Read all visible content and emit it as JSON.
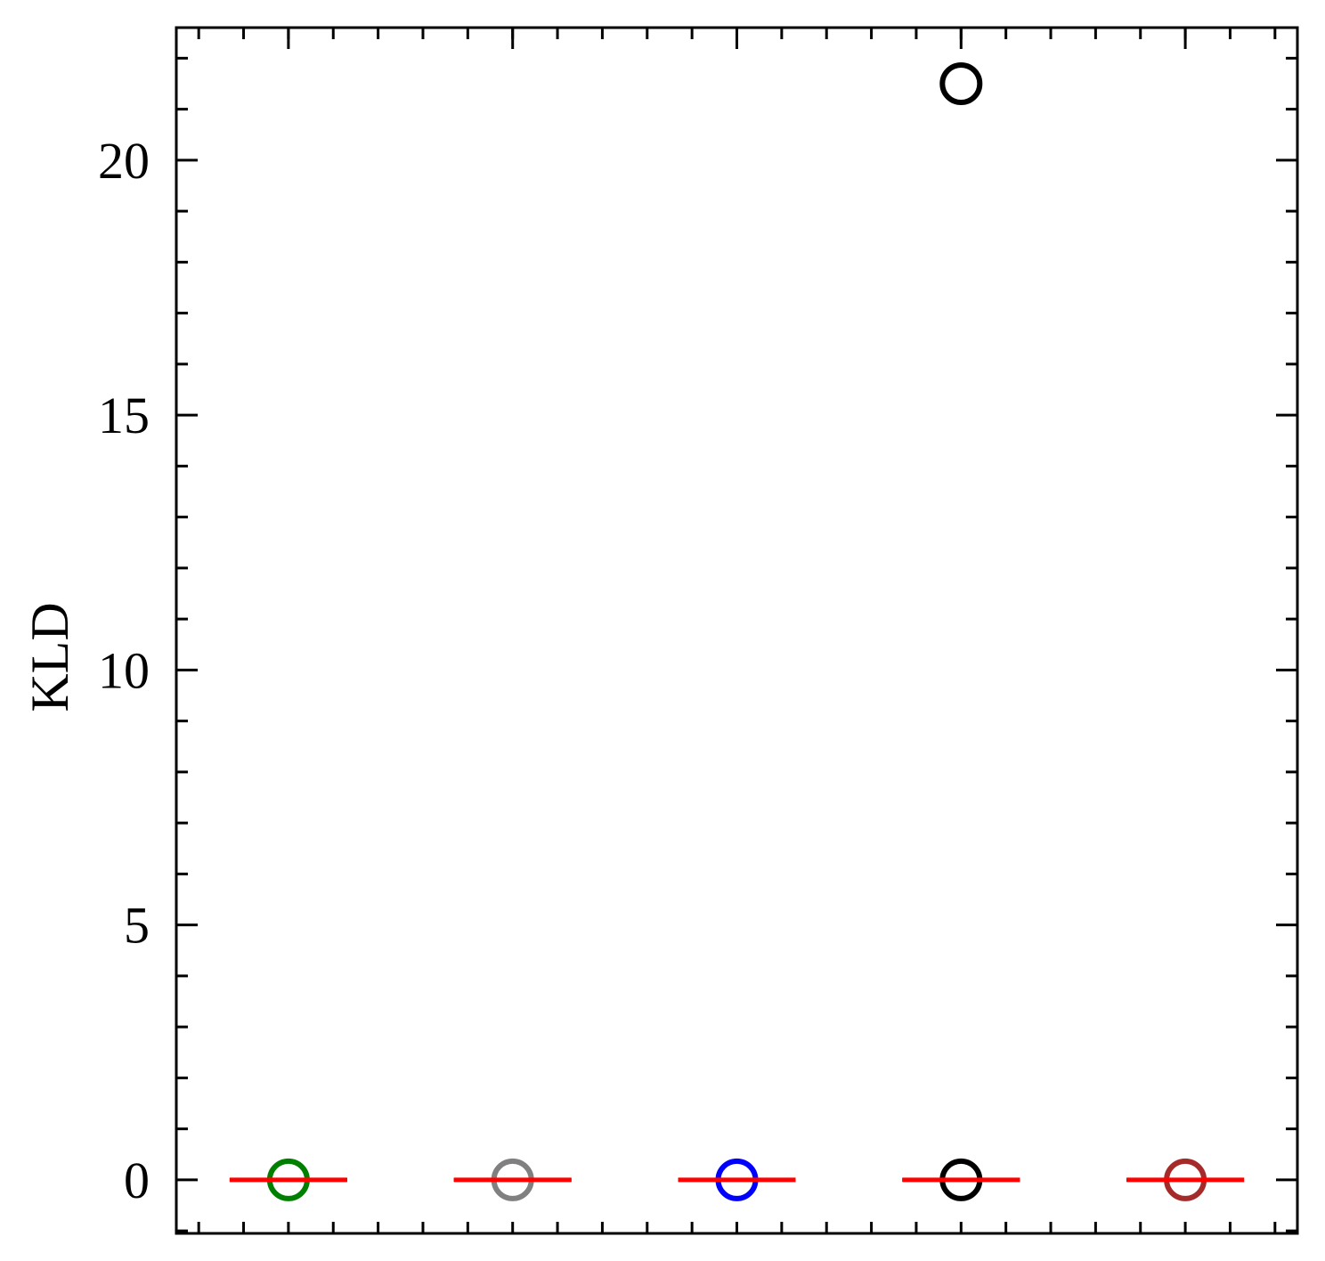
{
  "chart_data": {
    "type": "box",
    "ylabel": "KLD",
    "ylim": [
      -1.05,
      22.6
    ],
    "yticks": [
      0,
      5,
      10,
      15,
      20
    ],
    "ytick_labels": [
      "0",
      "5",
      "10",
      "15",
      "20"
    ],
    "y_minor_step": 1,
    "x_positions": [
      1,
      2,
      3,
      4,
      5
    ],
    "xlim": [
      0.5,
      5.5
    ],
    "x_minor_step": 0.2,
    "grid": false,
    "series": [
      {
        "median": 0.0,
        "outliers": [
          0.0
        ],
        "color": "#008000"
      },
      {
        "median": 0.0,
        "outliers": [
          0.0
        ],
        "color": "#808080"
      },
      {
        "median": 0.0,
        "outliers": [
          0.0
        ],
        "color": "#0000ff"
      },
      {
        "median": 0.0,
        "outliers": [
          0.0,
          21.5
        ],
        "color": "#000000"
      },
      {
        "median": 0.0,
        "outliers": [
          0.0
        ],
        "color": "#a52a2a"
      }
    ],
    "median_color": "#ff0000"
  }
}
